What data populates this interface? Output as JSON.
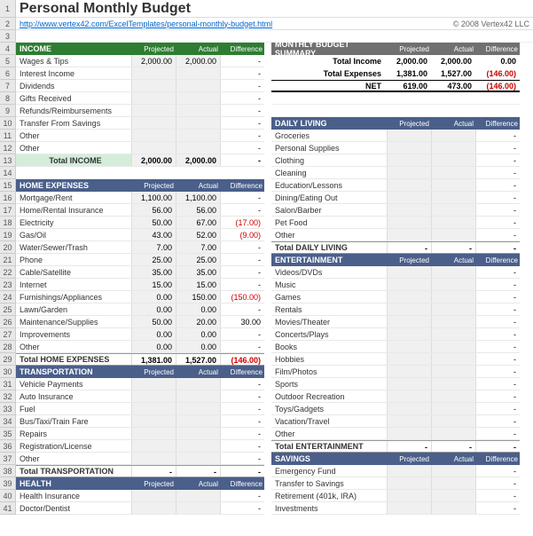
{
  "title": "Personal Monthly Budget",
  "link": "http://www.vertex42.com/ExcelTemplates/personal-monthly-budget.html",
  "copyright": "© 2008 Vertex42 LLC",
  "cols": {
    "projected": "Projected",
    "actual": "Actual",
    "difference": "Difference"
  },
  "summary": {
    "title": "MONTHLY BUDGET SUMMARY",
    "rows": [
      {
        "label": "Total Income",
        "p": "2,000.00",
        "a": "2,000.00",
        "d": "0.00"
      },
      {
        "label": "Total Expenses",
        "p": "1,381.00",
        "a": "1,527.00",
        "d": "(146.00)",
        "neg": true
      },
      {
        "label": "NET",
        "p": "619.00",
        "a": "473.00",
        "d": "(146.00)",
        "neg": true
      }
    ]
  },
  "income": {
    "title": "INCOME",
    "items": [
      {
        "label": "Wages & Tips",
        "p": "2,000.00",
        "a": "2,000.00",
        "d": "-"
      },
      {
        "label": "Interest Income",
        "p": "",
        "a": "",
        "d": "-"
      },
      {
        "label": "Dividends",
        "p": "",
        "a": "",
        "d": "-"
      },
      {
        "label": "Gifts Received",
        "p": "",
        "a": "",
        "d": "-"
      },
      {
        "label": "Refunds/Reimbursements",
        "p": "",
        "a": "",
        "d": "-"
      },
      {
        "label": "Transfer From Savings",
        "p": "",
        "a": "",
        "d": "-"
      },
      {
        "label": "Other",
        "p": "",
        "a": "",
        "d": "-"
      },
      {
        "label": "Other",
        "p": "",
        "a": "",
        "d": "-"
      }
    ],
    "total": {
      "label": "Total INCOME",
      "p": "2,000.00",
      "a": "2,000.00",
      "d": "-"
    }
  },
  "home": {
    "title": "HOME EXPENSES",
    "items": [
      {
        "label": "Mortgage/Rent",
        "p": "1,100.00",
        "a": "1,100.00",
        "d": "-"
      },
      {
        "label": "Home/Rental Insurance",
        "p": "56.00",
        "a": "56.00",
        "d": "-"
      },
      {
        "label": "Electricity",
        "p": "50.00",
        "a": "67.00",
        "d": "(17.00)",
        "neg": true
      },
      {
        "label": "Gas/Oil",
        "p": "43.00",
        "a": "52.00",
        "d": "(9.00)",
        "neg": true
      },
      {
        "label": "Water/Sewer/Trash",
        "p": "7.00",
        "a": "7.00",
        "d": "-"
      },
      {
        "label": "Phone",
        "p": "25.00",
        "a": "25.00",
        "d": "-"
      },
      {
        "label": "Cable/Satellite",
        "p": "35.00",
        "a": "35.00",
        "d": "-"
      },
      {
        "label": "Internet",
        "p": "15.00",
        "a": "15.00",
        "d": "-"
      },
      {
        "label": "Furnishings/Appliances",
        "p": "0.00",
        "a": "150.00",
        "d": "(150.00)",
        "neg": true
      },
      {
        "label": "Lawn/Garden",
        "p": "0.00",
        "a": "0.00",
        "d": "-"
      },
      {
        "label": "Maintenance/Supplies",
        "p": "50.00",
        "a": "20.00",
        "d": "30.00"
      },
      {
        "label": "Improvements",
        "p": "0.00",
        "a": "0.00",
        "d": "-"
      },
      {
        "label": "Other",
        "p": "0.00",
        "a": "0.00",
        "d": "-"
      }
    ],
    "total": {
      "label": "Total HOME EXPENSES",
      "p": "1,381.00",
      "a": "1,527.00",
      "d": "(146.00)",
      "neg": true
    }
  },
  "transport": {
    "title": "TRANSPORTATION",
    "items": [
      {
        "label": "Vehicle Payments",
        "p": "",
        "a": "",
        "d": "-"
      },
      {
        "label": "Auto Insurance",
        "p": "",
        "a": "",
        "d": "-"
      },
      {
        "label": "Fuel",
        "p": "",
        "a": "",
        "d": "-"
      },
      {
        "label": "Bus/Taxi/Train Fare",
        "p": "",
        "a": "",
        "d": "-"
      },
      {
        "label": "Repairs",
        "p": "",
        "a": "",
        "d": "-"
      },
      {
        "label": "Registration/License",
        "p": "",
        "a": "",
        "d": "-"
      },
      {
        "label": "Other",
        "p": "",
        "a": "",
        "d": "-"
      }
    ],
    "total": {
      "label": "Total TRANSPORTATION",
      "p": "-",
      "a": "-",
      "d": "-"
    }
  },
  "health": {
    "title": "HEALTH",
    "items": [
      {
        "label": "Health Insurance",
        "p": "",
        "a": "",
        "d": "-"
      },
      {
        "label": "Doctor/Dentist",
        "p": "",
        "a": "",
        "d": "-"
      }
    ]
  },
  "daily": {
    "title": "DAILY LIVING",
    "items": [
      {
        "label": "Groceries",
        "p": "",
        "a": "",
        "d": "-"
      },
      {
        "label": "Personal Supplies",
        "p": "",
        "a": "",
        "d": "-"
      },
      {
        "label": "Clothing",
        "p": "",
        "a": "",
        "d": "-"
      },
      {
        "label": "Cleaning",
        "p": "",
        "a": "",
        "d": "-"
      },
      {
        "label": "Education/Lessons",
        "p": "",
        "a": "",
        "d": "-"
      },
      {
        "label": "Dining/Eating Out",
        "p": "",
        "a": "",
        "d": "-"
      },
      {
        "label": "Salon/Barber",
        "p": "",
        "a": "",
        "d": "-"
      },
      {
        "label": "Pet Food",
        "p": "",
        "a": "",
        "d": "-"
      },
      {
        "label": "Other",
        "p": "",
        "a": "",
        "d": "-"
      }
    ],
    "total": {
      "label": "Total DAILY LIVING",
      "p": "-",
      "a": "-",
      "d": "-"
    }
  },
  "ent": {
    "title": "ENTERTAINMENT",
    "items": [
      {
        "label": "Videos/DVDs",
        "p": "",
        "a": "",
        "d": "-"
      },
      {
        "label": "Music",
        "p": "",
        "a": "",
        "d": "-"
      },
      {
        "label": "Games",
        "p": "",
        "a": "",
        "d": "-"
      },
      {
        "label": "Rentals",
        "p": "",
        "a": "",
        "d": "-"
      },
      {
        "label": "Movies/Theater",
        "p": "",
        "a": "",
        "d": "-"
      },
      {
        "label": "Concerts/Plays",
        "p": "",
        "a": "",
        "d": "-"
      },
      {
        "label": "Books",
        "p": "",
        "a": "",
        "d": "-"
      },
      {
        "label": "Hobbies",
        "p": "",
        "a": "",
        "d": "-"
      },
      {
        "label": "Film/Photos",
        "p": "",
        "a": "",
        "d": "-"
      },
      {
        "label": "Sports",
        "p": "",
        "a": "",
        "d": "-"
      },
      {
        "label": "Outdoor Recreation",
        "p": "",
        "a": "",
        "d": "-"
      },
      {
        "label": "Toys/Gadgets",
        "p": "",
        "a": "",
        "d": "-"
      },
      {
        "label": "Vacation/Travel",
        "p": "",
        "a": "",
        "d": "-"
      },
      {
        "label": "Other",
        "p": "",
        "a": "",
        "d": "-"
      }
    ],
    "total": {
      "label": "Total ENTERTAINMENT",
      "p": "-",
      "a": "-",
      "d": "-"
    }
  },
  "savings": {
    "title": "SAVINGS",
    "items": [
      {
        "label": "Emergency Fund",
        "p": "",
        "a": "",
        "d": "-"
      },
      {
        "label": "Transfer to Savings",
        "p": "",
        "a": "",
        "d": "-"
      },
      {
        "label": "Retirement (401k, IRA)",
        "p": "",
        "a": "",
        "d": "-"
      },
      {
        "label": "Investments",
        "p": "",
        "a": "",
        "d": "-"
      }
    ]
  },
  "row_numbers": [
    1,
    2,
    3,
    4,
    5,
    6,
    7,
    8,
    9,
    10,
    11,
    12,
    13,
    14,
    15,
    16,
    17,
    18,
    19,
    20,
    21,
    22,
    23,
    24,
    25,
    26,
    27,
    28,
    29,
    30,
    31,
    32,
    33,
    34,
    35,
    36,
    37,
    38,
    39,
    40,
    41
  ],
  "colors": {
    "green_hdr": "#2e7d32",
    "blue_hdr": "#4a5f8a",
    "gray_hdr": "#707070",
    "green_total": "#d4edda",
    "cell_bg": "#f0f0f0",
    "neg": "#cc0000"
  }
}
